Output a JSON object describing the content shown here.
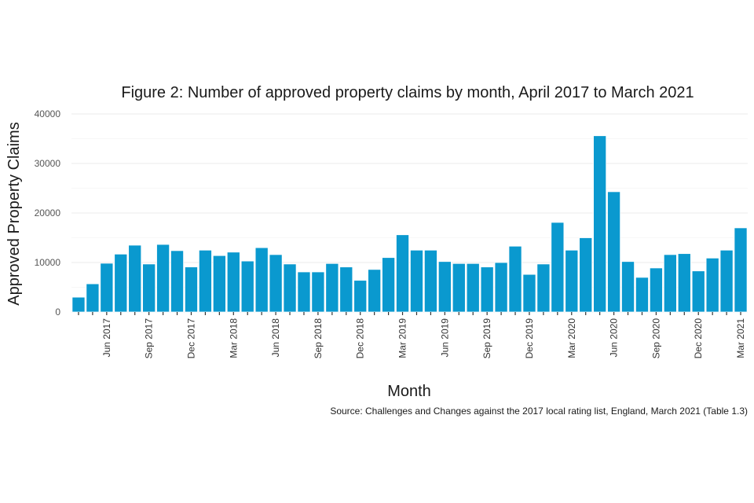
{
  "chart_data": {
    "type": "bar",
    "title": "Figure 2: Number of approved property claims by month, April 2017 to March 2021",
    "xlabel": "Month",
    "ylabel": "Approved Property Claims",
    "source": "Source: Challenges and Changes against the 2017 local rating list, England, March 2021 (Table 1.3)",
    "ylim": [
      0,
      40000
    ],
    "yticks": [
      0,
      10000,
      20000,
      30000,
      40000
    ],
    "ytick_labels": [
      "0",
      "10000",
      "20000",
      "30000",
      "40000"
    ],
    "grid": true,
    "legend": "none",
    "bar_color": "#0a99cf",
    "categories": [
      "Apr 2017",
      "May 2017",
      "Jun 2017",
      "Jul 2017",
      "Aug 2017",
      "Sep 2017",
      "Oct 2017",
      "Nov 2017",
      "Dec 2017",
      "Jan 2018",
      "Feb 2018",
      "Mar 2018",
      "Apr 2018",
      "May 2018",
      "Jun 2018",
      "Jul 2018",
      "Aug 2018",
      "Sep 2018",
      "Oct 2018",
      "Nov 2018",
      "Dec 2018",
      "Jan 2019",
      "Feb 2019",
      "Mar 2019",
      "Apr 2019",
      "May 2019",
      "Jun 2019",
      "Jul 2019",
      "Aug 2019",
      "Sep 2019",
      "Oct 2019",
      "Nov 2019",
      "Dec 2019",
      "Jan 2020",
      "Feb 2020",
      "Mar 2020",
      "Apr 2020",
      "May 2020",
      "Jun 2020",
      "Jul 2020",
      "Aug 2020",
      "Sep 2020",
      "Oct 2020",
      "Nov 2020",
      "Dec 2020",
      "Jan 2021",
      "Feb 2021",
      "Mar 2021"
    ],
    "values": [
      3000,
      5700,
      9850,
      11700,
      13500,
      9700,
      13650,
      12400,
      9100,
      12500,
      11400,
      12100,
      10300,
      13000,
      11600,
      9700,
      8100,
      8100,
      9800,
      9100,
      6400,
      8600,
      11000,
      15600,
      12500,
      12500,
      10200,
      9800,
      9800,
      9100,
      10000,
      13300,
      7600,
      9700,
      18100,
      12500,
      15000,
      35600,
      24300,
      10200,
      7000,
      8900,
      11600,
      11800,
      8300,
      10900,
      12500,
      17000
    ],
    "xtick_labels": [
      "Jun 2017",
      "Sep 2017",
      "Dec 2017",
      "Mar 2018",
      "Jun 2018",
      "Sep 2018",
      "Dec 2018",
      "Mar 2019",
      "Jun 2019",
      "Sep 2019",
      "Dec 2019",
      "Mar 2020",
      "Jun 2020",
      "Sep 2020",
      "Dec 2020",
      "Mar 2021"
    ]
  }
}
